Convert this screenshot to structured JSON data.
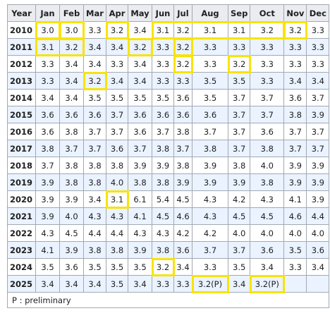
{
  "table": {
    "headers": [
      "Year",
      "Jan",
      "Feb",
      "Mar",
      "Apr",
      "May",
      "Jun",
      "Jul",
      "Aug",
      "Sep",
      "Oct",
      "Nov",
      "Dec"
    ],
    "rows": [
      {
        "year": "2010",
        "values": [
          "3.0",
          "3.0",
          "3.3",
          "3.2",
          "3.4",
          "3.1",
          "3.2",
          "3.1",
          "3.1",
          "3.2",
          "3.2",
          "3.3"
        ]
      },
      {
        "year": "2011",
        "values": [
          "3.1",
          "3.2",
          "3.4",
          "3.4",
          "3.2",
          "3.3",
          "3.2",
          "3.3",
          "3.3",
          "3.3",
          "3.3",
          "3.3"
        ]
      },
      {
        "year": "2012",
        "values": [
          "3.3",
          "3.4",
          "3.4",
          "3.3",
          "3.4",
          "3.3",
          "3.2",
          "3.3",
          "3.2",
          "3.3",
          "3.3",
          "3.3"
        ]
      },
      {
        "year": "2013",
        "values": [
          "3.3",
          "3.4",
          "3.2",
          "3.4",
          "3.4",
          "3.3",
          "3.3",
          "3.5",
          "3.5",
          "3.3",
          "3.4",
          "3.4"
        ]
      },
      {
        "year": "2014",
        "values": [
          "3.4",
          "3.4",
          "3.5",
          "3.5",
          "3.5",
          "3.5",
          "3.6",
          "3.5",
          "3.7",
          "3.7",
          "3.6",
          "3.7"
        ]
      },
      {
        "year": "2015",
        "values": [
          "3.6",
          "3.6",
          "3.6",
          "3.7",
          "3.6",
          "3.6",
          "3.6",
          "3.6",
          "3.7",
          "3.7",
          "3.8",
          "3.9"
        ]
      },
      {
        "year": "2016",
        "values": [
          "3.6",
          "3.8",
          "3.7",
          "3.7",
          "3.6",
          "3.7",
          "3.8",
          "3.7",
          "3.7",
          "3.6",
          "3.7",
          "3.7"
        ]
      },
      {
        "year": "2017",
        "values": [
          "3.8",
          "3.7",
          "3.7",
          "3.6",
          "3.7",
          "3.8",
          "3.7",
          "3.8",
          "3.7",
          "3.8",
          "3.7",
          "3.7"
        ]
      },
      {
        "year": "2018",
        "values": [
          "3.7",
          "3.8",
          "3.8",
          "3.8",
          "3.9",
          "3.9",
          "3.8",
          "3.9",
          "3.8",
          "4.0",
          "3.9",
          "3.9"
        ]
      },
      {
        "year": "2019",
        "values": [
          "3.9",
          "3.8",
          "3.8",
          "4.0",
          "3.8",
          "3.8",
          "3.9",
          "3.9",
          "3.9",
          "3.8",
          "3.9",
          "3.9"
        ]
      },
      {
        "year": "2020",
        "values": [
          "3.9",
          "3.9",
          "3.4",
          "3.1",
          "6.1",
          "5.4",
          "4.5",
          "4.3",
          "4.2",
          "4.3",
          "4.1",
          "3.9"
        ]
      },
      {
        "year": "2021",
        "values": [
          "3.9",
          "4.0",
          "4.3",
          "4.3",
          "4.1",
          "4.5",
          "4.6",
          "4.3",
          "4.5",
          "4.5",
          "4.6",
          "4.4"
        ]
      },
      {
        "year": "2022",
        "values": [
          "4.3",
          "4.5",
          "4.4",
          "4.4",
          "4.3",
          "4.3",
          "4.2",
          "4.2",
          "4.0",
          "4.0",
          "4.0",
          "4.0"
        ]
      },
      {
        "year": "2023",
        "values": [
          "4.1",
          "3.9",
          "3.8",
          "3.8",
          "3.9",
          "3.8",
          "3.6",
          "3.7",
          "3.7",
          "3.6",
          "3.5",
          "3.6"
        ]
      },
      {
        "year": "2024",
        "values": [
          "3.5",
          "3.6",
          "3.5",
          "3.5",
          "3.5",
          "3.2",
          "3.4",
          "3.3",
          "3.5",
          "3.4",
          "3.3",
          "3.4"
        ]
      },
      {
        "year": "2025",
        "values": [
          "3.4",
          "3.4",
          "3.4",
          "3.5",
          "3.4",
          "3.3",
          "3.3",
          "3.2(P)",
          "3.4",
          "3.2(P)",
          "",
          ""
        ]
      }
    ],
    "footnote": "P : preliminary"
  },
  "highlight_color": "#f7e30b",
  "highlights": [
    {
      "year": "2010",
      "months": [
        "Jan"
      ]
    },
    {
      "year": "2010",
      "months": [
        "Feb"
      ]
    },
    {
      "year": "2010",
      "months": [
        "Apr"
      ]
    },
    {
      "year": "2010",
      "months": [
        "Jun",
        "Jul",
        "Aug",
        "Sep",
        "Oct"
      ]
    },
    {
      "year": "2010",
      "months": [
        "Nov"
      ]
    },
    {
      "year": "2011",
      "months": [
        "Jan",
        "Feb"
      ]
    },
    {
      "year": "2011",
      "months": [
        "May"
      ]
    },
    {
      "year": "2011",
      "months": [
        "Jul"
      ]
    },
    {
      "year": "2012",
      "months": [
        "Jul"
      ]
    },
    {
      "year": "2012",
      "months": [
        "Sep"
      ]
    },
    {
      "year": "2013",
      "months": [
        "Mar"
      ]
    },
    {
      "year": "2020",
      "months": [
        "Apr"
      ]
    },
    {
      "year": "2024",
      "months": [
        "Jun"
      ]
    },
    {
      "year": "2025",
      "months": [
        "Aug"
      ]
    },
    {
      "year": "2025",
      "months": [
        "Oct"
      ]
    }
  ]
}
